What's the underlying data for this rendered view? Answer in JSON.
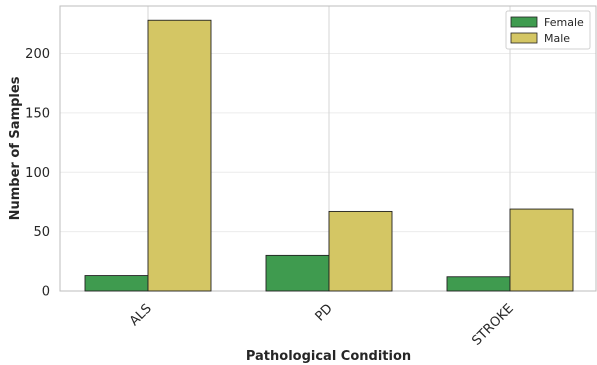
{
  "chart_data": {
    "type": "bar",
    "categories": [
      "ALS",
      "PD",
      "STROKE"
    ],
    "series": [
      {
        "name": "Female",
        "values": [
          13,
          30,
          12
        ],
        "color": "#3f9b4f"
      },
      {
        "name": "Male",
        "values": [
          228,
          67,
          69
        ],
        "color": "#d4c664"
      }
    ],
    "xlabel": "Pathological Condition",
    "ylabel": "Number of Samples",
    "ylim": [
      0,
      240
    ],
    "yticks": [
      0,
      50,
      100,
      150,
      200
    ],
    "grid": true,
    "legend": "top-right"
  }
}
